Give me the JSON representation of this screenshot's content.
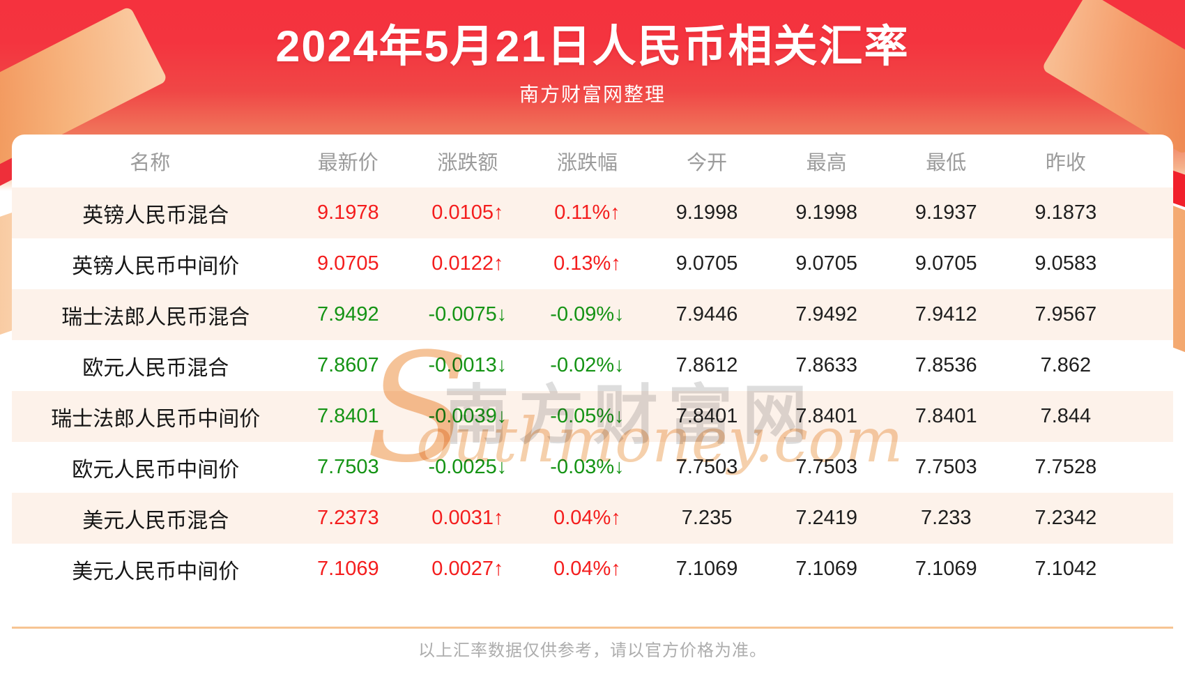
{
  "header": {
    "title": "2024年5月21日人民币相关汇率",
    "subtitle": "南方财富网整理"
  },
  "chart_data": {
    "type": "table",
    "title": "2024年5月21日人民币相关汇率",
    "columns": [
      "名称",
      "最新价",
      "涨跌额",
      "涨跌幅",
      "今开",
      "最高",
      "最低",
      "昨收"
    ],
    "rows": [
      {
        "name": "英镑人民币混合",
        "latest": "9.1978",
        "change": "0.0105↑",
        "change_pct": "0.11%↑",
        "open": "9.1998",
        "high": "9.1998",
        "low": "9.1937",
        "prev_close": "9.1873",
        "direction": "up"
      },
      {
        "name": "英镑人民币中间价",
        "latest": "9.0705",
        "change": "0.0122↑",
        "change_pct": "0.13%↑",
        "open": "9.0705",
        "high": "9.0705",
        "low": "9.0705",
        "prev_close": "9.0583",
        "direction": "up"
      },
      {
        "name": "瑞士法郎人民币混合",
        "latest": "7.9492",
        "change": "-0.0075↓",
        "change_pct": "-0.09%↓",
        "open": "7.9446",
        "high": "7.9492",
        "low": "7.9412",
        "prev_close": "7.9567",
        "direction": "down"
      },
      {
        "name": "欧元人民币混合",
        "latest": "7.8607",
        "change": "-0.0013↓",
        "change_pct": "-0.02%↓",
        "open": "7.8612",
        "high": "7.8633",
        "low": "7.8536",
        "prev_close": "7.862",
        "direction": "down"
      },
      {
        "name": "瑞士法郎人民币中间价",
        "latest": "7.8401",
        "change": "-0.0039↓",
        "change_pct": "-0.05%↓",
        "open": "7.8401",
        "high": "7.8401",
        "low": "7.8401",
        "prev_close": "7.844",
        "direction": "down"
      },
      {
        "name": "欧元人民币中间价",
        "latest": "7.7503",
        "change": "-0.0025↓",
        "change_pct": "-0.03%↓",
        "open": "7.7503",
        "high": "7.7503",
        "low": "7.7503",
        "prev_close": "7.7528",
        "direction": "down"
      },
      {
        "name": "美元人民币混合",
        "latest": "7.2373",
        "change": "0.0031↑",
        "change_pct": "0.04%↑",
        "open": "7.235",
        "high": "7.2419",
        "low": "7.233",
        "prev_close": "7.2342",
        "direction": "up"
      },
      {
        "name": "美元人民币中间价",
        "latest": "7.1069",
        "change": "0.0027↑",
        "change_pct": "0.04%↑",
        "open": "7.1069",
        "high": "7.1069",
        "low": "7.1069",
        "prev_close": "7.1042",
        "direction": "up"
      }
    ]
  },
  "watermark": {
    "initial": "S",
    "cn": "南方财富网",
    "en": "outhmoney.com"
  },
  "footer": {
    "note": "以上汇率数据仅供参考，请以官方价格为准。"
  },
  "colors": {
    "up": "#f41d1d",
    "down": "#149314",
    "row_alt": "#fdf2ea",
    "divider": "#f7c493",
    "header_text": "#9b9b9b"
  }
}
